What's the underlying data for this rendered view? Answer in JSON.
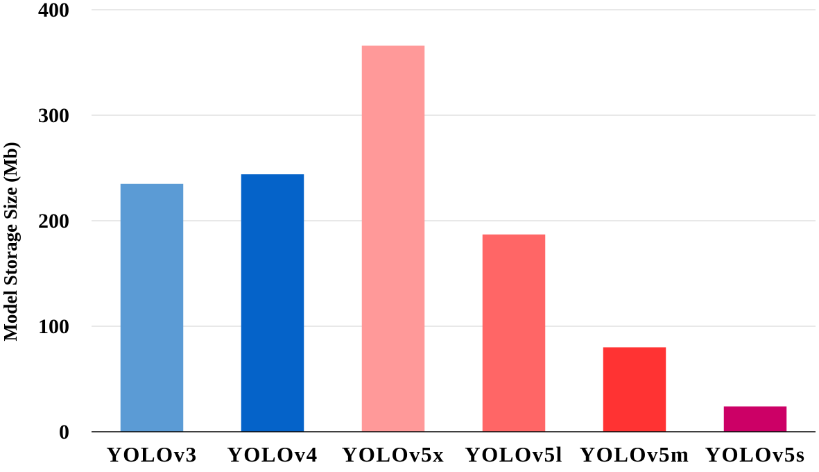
{
  "chart_data": {
    "type": "bar",
    "title": "",
    "xlabel": "",
    "ylabel": "Model Storage Size (Mb)",
    "categories": [
      "YOLOv3",
      "YOLOv4",
      "YOLOv5x",
      "YOLOv5l",
      "YOLOv5m",
      "YOLOv5s"
    ],
    "values": [
      235,
      244,
      366,
      187,
      80,
      24
    ],
    "bar_colors": [
      "#5B9BD5",
      "#0563C9",
      "#FF9999",
      "#FF6666",
      "#FF3333",
      "#CC0066"
    ],
    "ylim": [
      0,
      400
    ],
    "yticks": [
      0,
      100,
      200,
      300,
      400
    ],
    "ytick_labels": [
      "0",
      "100",
      "200",
      "300",
      "400"
    ],
    "grid": true,
    "legend": "none",
    "colors": {
      "gridline": "#d9d9d9",
      "axis": "#000000",
      "text": "#000000"
    }
  }
}
